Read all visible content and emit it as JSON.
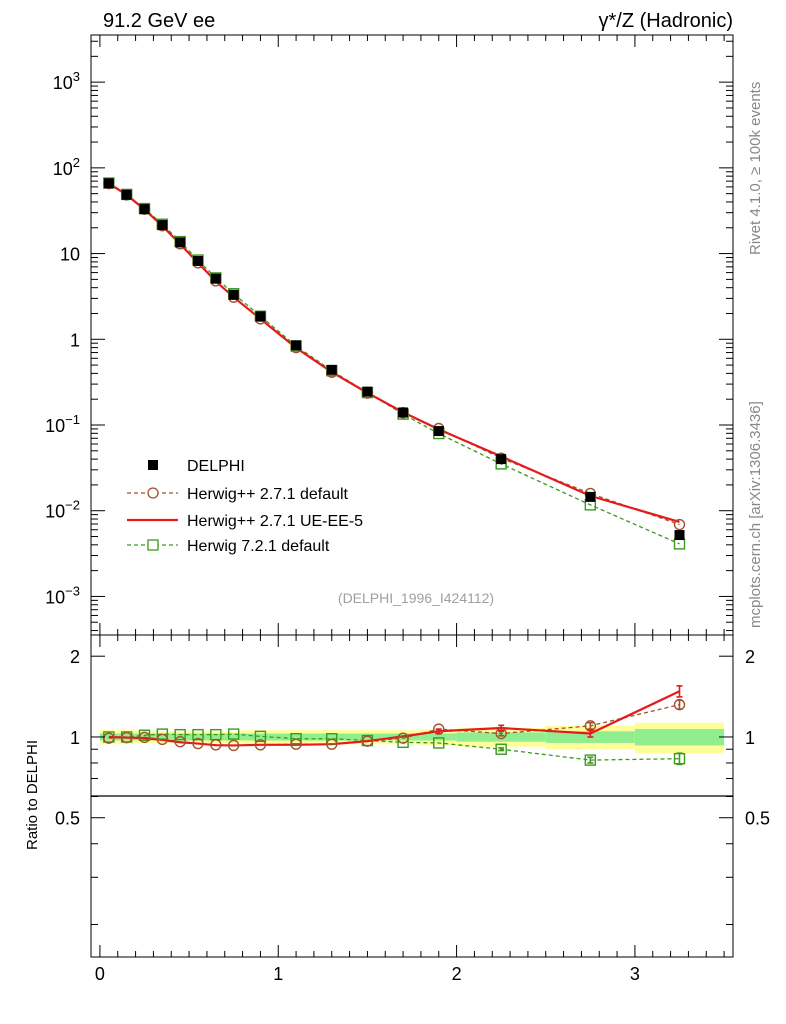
{
  "chart_data": {
    "type": "line",
    "title_left": "91.2 GeV ee",
    "title_right": "γ*/Z (Hadronic)",
    "side_label_top": "Rivet 4.1.0, ≥ 100k events",
    "side_label_bottom": "mcplots.cern.ch [arXiv:1306.3436]",
    "watermark": "(DELPHI_1996_I424112)",
    "ratio_ylabel": "Ratio to DELPHI",
    "x_ticks": [
      "0",
      "1",
      "2",
      "3"
    ],
    "y_ticks": [
      "10^-3",
      "10^-2",
      "10^-1",
      "1",
      "10",
      "10^2",
      "10^3"
    ],
    "ratio_ticks": [
      "0.5",
      "1",
      "2"
    ],
    "xlim": [
      -0.05,
      3.55
    ],
    "ylim_log": [
      -3.45,
      3.55
    ],
    "ratio_ylim_log": [
      -0.82,
      0.38
    ],
    "x": [
      0.05,
      0.15,
      0.25,
      0.35,
      0.45,
      0.55,
      0.65,
      0.75,
      0.9,
      1.1,
      1.3,
      1.5,
      1.7,
      1.9,
      2.25,
      2.75,
      3.25
    ],
    "bin_edges": [
      0,
      0.1,
      0.2,
      0.3,
      0.4,
      0.5,
      0.6,
      0.7,
      0.8,
      1.0,
      1.2,
      1.4,
      1.6,
      1.8,
      2.0,
      2.5,
      3.0,
      3.5
    ],
    "band_inner": [
      0.03,
      0.03,
      0.03,
      0.03,
      0.03,
      0.03,
      0.03,
      0.03,
      0.03,
      0.03,
      0.03,
      0.03,
      0.03,
      0.03,
      0.04,
      0.05,
      0.07
    ],
    "band_outer": [
      0.06,
      0.06,
      0.05,
      0.05,
      0.05,
      0.05,
      0.05,
      0.05,
      0.06,
      0.06,
      0.06,
      0.06,
      0.06,
      0.07,
      0.08,
      0.1,
      0.13
    ],
    "series": [
      {
        "name": "DELPHI",
        "style": "data",
        "color": "#000000",
        "values": [
          66,
          48.5,
          33,
          21.5,
          13.5,
          8.2,
          5.1,
          3.3,
          1.85,
          0.85,
          0.44,
          0.245,
          0.14,
          0.085,
          0.04,
          0.0145,
          0.0052
        ]
      },
      {
        "name": "Herwig++ 2.7.1 default",
        "style": "circle-dashed",
        "color": "#a0522d",
        "values": [
          65.5,
          48.3,
          32.9,
          21.1,
          13.0,
          7.8,
          4.8,
          3.1,
          1.73,
          0.8,
          0.413,
          0.236,
          0.139,
          0.091,
          0.041,
          0.0159,
          0.0069
        ],
        "ratio": [
          0.99,
          0.995,
          0.997,
          0.98,
          0.96,
          0.945,
          0.935,
          0.93,
          0.935,
          0.94,
          0.94,
          0.965,
          0.99,
          1.07,
          1.03,
          1.1,
          1.32
        ],
        "ratio_err": [
          0,
          0,
          0,
          0,
          0,
          0,
          0,
          0,
          0,
          0,
          0,
          0,
          0,
          0,
          0.02,
          0.03,
          0.05
        ]
      },
      {
        "name": "Herwig++ 2.7.1 UE-EE-5",
        "style": "solid",
        "color": "#e41a1c",
        "values": [
          66,
          48.3,
          32.7,
          21.0,
          12.9,
          7.8,
          4.75,
          3.1,
          1.73,
          0.795,
          0.414,
          0.237,
          0.141,
          0.089,
          0.043,
          0.0149,
          0.0074
        ],
        "ratio": [
          1.0,
          0.995,
          0.99,
          0.975,
          0.955,
          0.945,
          0.932,
          0.93,
          0.935,
          0.935,
          0.94,
          0.965,
          1.005,
          1.05,
          1.08,
          1.03,
          1.48
        ],
        "ratio_err": [
          0,
          0,
          0,
          0,
          0,
          0,
          0,
          0,
          0,
          0,
          0,
          0,
          0,
          0.02,
          0.025,
          0.03,
          0.07
        ]
      },
      {
        "name": "Herwig 7.2.1 default",
        "style": "square-dashed",
        "color": "#3a9a1e",
        "values": [
          66.5,
          49,
          33.5,
          22,
          13.8,
          8.4,
          5.2,
          3.4,
          1.86,
          0.835,
          0.43,
          0.239,
          0.134,
          0.0795,
          0.0352,
          0.0117,
          0.0041
        ],
        "ratio": [
          1.0,
          1.0,
          1.015,
          1.025,
          1.02,
          1.02,
          1.02,
          1.025,
          1.005,
          0.985,
          0.985,
          0.97,
          0.955,
          0.95,
          0.9,
          0.82,
          0.83
        ],
        "ratio_err": [
          0,
          0,
          0,
          0,
          0,
          0,
          0,
          0,
          0,
          0,
          0,
          0,
          0,
          0,
          0.01,
          0.02,
          0.04
        ]
      }
    ]
  }
}
